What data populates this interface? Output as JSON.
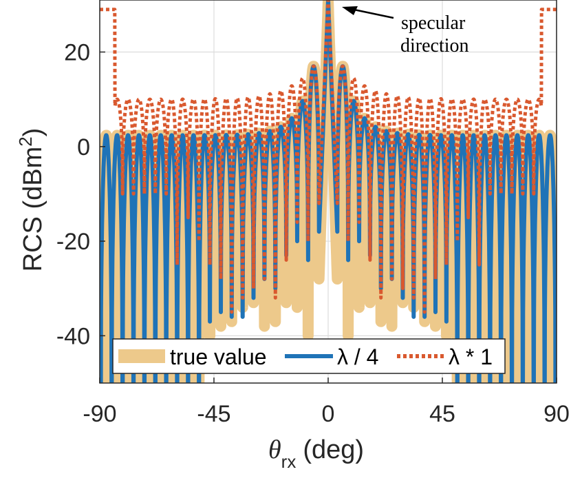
{
  "chart_data": {
    "type": "line",
    "title": "",
    "xlabel": "θ",
    "xlabel_sub": "rx",
    "xlabel_unit": "(deg)",
    "ylabel": "RCS (dBm",
    "ylabel_sup": "2",
    "ylabel_close": ")",
    "xlim": [
      -90,
      90
    ],
    "ylim": [
      -50,
      31
    ],
    "grid": true,
    "xticks": [
      -90,
      -45,
      0,
      45,
      90
    ],
    "xtick_labels": [
      "-90",
      "-45",
      "0",
      "45",
      "90"
    ],
    "yticks": [
      -40,
      -20,
      0,
      20
    ],
    "ytick_labels": [
      "-40",
      "-20",
      "0",
      "20"
    ],
    "annotation": {
      "lines": [
        "specular",
        "direction"
      ],
      "arrow_to": [
        0,
        31
      ]
    },
    "legend": {
      "placement": "bottom-center",
      "entries": [
        "true value",
        "λ / 4",
        "λ * 1"
      ]
    },
    "series": [
      {
        "name": "true value",
        "style": "solid-thick",
        "color": "#EDC98B",
        "peak": 31,
        "width": 3.6,
        "shoulder": 2.4,
        "decay": 0.7,
        "null_depths": [
          -28,
          -40,
          -34,
          -33,
          -37,
          -38,
          -33,
          -34,
          -37,
          -38,
          -40,
          -60,
          -60,
          -60,
          -60
        ],
        "null_sides": [
          0,
          0,
          0,
          0,
          0,
          0,
          0,
          0,
          0,
          0,
          0,
          0,
          0,
          0,
          0
        ]
      },
      {
        "name": "λ / 4",
        "style": "solid",
        "color": "#1F73B7",
        "peak": 31,
        "width": 3.6,
        "shoulder": 2.4,
        "decay": 0.7,
        "null_depths": [
          -18,
          -24,
          -20,
          -23,
          -30,
          -28,
          -32,
          -36,
          -36,
          -35,
          -37,
          -60,
          -60,
          -60,
          -60
        ],
        "null_sides": [
          0,
          0,
          0,
          0,
          0,
          0,
          0,
          0,
          0,
          0,
          0,
          0,
          0,
          0,
          0
        ]
      },
      {
        "name": "λ * 1",
        "style": "dotted",
        "color": "#D9592F",
        "peak": 31,
        "width": 3.6,
        "shoulder": 10,
        "decay": 0.45,
        "null_depths": [
          -12,
          -20,
          -16,
          -24,
          -32,
          -28,
          -30,
          -32,
          -35,
          -28,
          -25,
          -20,
          -15,
          -25,
          -10
        ],
        "null_sides": [
          0,
          0,
          0,
          0,
          0,
          0,
          0,
          0,
          0,
          0,
          0,
          0,
          0,
          0,
          0
        ]
      }
    ]
  }
}
